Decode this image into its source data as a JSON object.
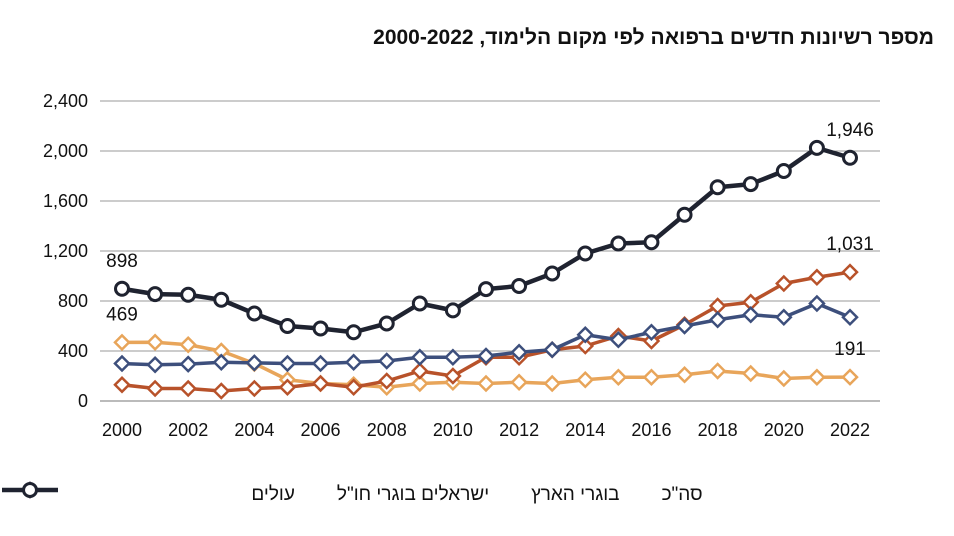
{
  "chart_data": {
    "type": "line",
    "title": "מספר רשיונות חדשים ברפואה לפי מקום הלימוד, 2000-2022",
    "x": [
      2000,
      2001,
      2002,
      2003,
      2004,
      2005,
      2006,
      2007,
      2008,
      2009,
      2010,
      2011,
      2012,
      2013,
      2014,
      2015,
      2016,
      2017,
      2018,
      2019,
      2020,
      2021,
      2022
    ],
    "xticks": [
      "2000",
      "2002",
      "2004",
      "2006",
      "2008",
      "2010",
      "2012",
      "2014",
      "2016",
      "2018",
      "2020",
      "2022"
    ],
    "yticks": [
      "0",
      "400",
      "800",
      "1,200",
      "1,600",
      "2,000",
      "2,400"
    ],
    "ylim": [
      0,
      2400
    ],
    "grid": "horizontal",
    "legend_position": "bottom",
    "series": [
      {
        "name": "סה\"כ",
        "color": "#1f2330",
        "marker": "circle",
        "values": [
          898,
          855,
          850,
          810,
          700,
          600,
          580,
          550,
          620,
          780,
          725,
          895,
          920,
          1020,
          1180,
          1260,
          1270,
          1490,
          1710,
          1735,
          1840,
          2025,
          1946
        ]
      },
      {
        "name": "בוגרי הארץ",
        "color": "#3d4f7c",
        "marker": "diamond",
        "values": [
          300,
          290,
          295,
          310,
          305,
          300,
          300,
          310,
          320,
          350,
          350,
          360,
          390,
          410,
          530,
          490,
          550,
          600,
          650,
          690,
          670,
          780,
          670
        ]
      },
      {
        "name": "ישראלים בוגרי חו\"ל",
        "color": "#b8522a",
        "marker": "diamond",
        "values": [
          130,
          100,
          100,
          80,
          100,
          110,
          140,
          110,
          160,
          240,
          200,
          350,
          350,
          410,
          440,
          520,
          480,
          610,
          760,
          790,
          940,
          990,
          1031
        ]
      },
      {
        "name": "עולים",
        "color": "#e8a55a",
        "marker": "diamond",
        "values": [
          469,
          470,
          450,
          400,
          300,
          170,
          140,
          130,
          110,
          140,
          150,
          140,
          150,
          140,
          170,
          190,
          190,
          210,
          240,
          220,
          180,
          190,
          191
        ]
      }
    ],
    "annotations": [
      {
        "text": "898",
        "series": 0,
        "x": 2000
      },
      {
        "text": "1,946",
        "series": 0,
        "x": 2022
      },
      {
        "text": "1,031",
        "series": 2,
        "x": 2022
      },
      {
        "text": "469",
        "series": 3,
        "x": 2000
      },
      {
        "text": "191",
        "series": 3,
        "x": 2022
      }
    ]
  }
}
